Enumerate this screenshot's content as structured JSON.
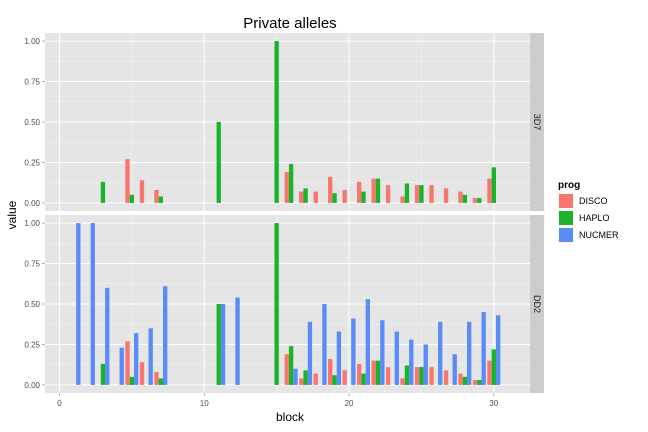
{
  "chart_data": {
    "type": "bar",
    "title": "Private alleles",
    "xlabel": "block",
    "ylabel": "value",
    "xlim": [
      -1,
      32.5
    ],
    "ylim": [
      -0.05,
      1.05
    ],
    "x_ticks": [
      0,
      10,
      20,
      30
    ],
    "y_ticks": [
      "0.00",
      "0.25",
      "0.50",
      "0.75",
      "1.00"
    ],
    "grid": true,
    "legend": {
      "title": "prog",
      "position": "right",
      "entries": [
        {
          "name": "DISCO",
          "color": "#F8766D"
        },
        {
          "name": "HAPLO",
          "color": "#1AB42B"
        },
        {
          "name": "NUCMER",
          "color": "#5A8CF8"
        }
      ]
    },
    "facets": [
      {
        "strip": "3D7",
        "series": [
          {
            "name": "DISCO",
            "x": [
              5,
              6,
              7,
              16,
              17,
              18,
              19,
              20,
              21,
              22,
              23,
              24,
              25,
              26,
              27,
              28,
              29,
              30
            ],
            "values": [
              0.27,
              0.14,
              0.08,
              0.19,
              0.07,
              0.07,
              0.16,
              0.08,
              0.13,
              0.15,
              0.11,
              0.04,
              0.11,
              0.11,
              0.09,
              0.07,
              0.03,
              0.15
            ]
          },
          {
            "name": "HAPLO",
            "x": [
              3,
              5,
              7,
              11,
              15,
              16,
              17,
              19,
              21,
              22,
              24,
              25,
              28,
              29,
              30
            ],
            "values": [
              0.13,
              0.05,
              0.04,
              0.5,
              1.0,
              0.24,
              0.09,
              0.06,
              0.07,
              0.15,
              0.12,
              0.11,
              0.05,
              0.03,
              0.22
            ]
          },
          {
            "name": "NUCMER",
            "x": [],
            "values": []
          }
        ]
      },
      {
        "strip": "DD2",
        "series": [
          {
            "name": "DISCO",
            "x": [
              5,
              6,
              7,
              16,
              17,
              18,
              19,
              20,
              21,
              22,
              23,
              24,
              25,
              26,
              27,
              28,
              29,
              30
            ],
            "values": [
              0.27,
              0.14,
              0.08,
              0.19,
              0.04,
              0.07,
              0.16,
              0.09,
              0.13,
              0.15,
              0.11,
              0.04,
              0.11,
              0.11,
              0.09,
              0.07,
              0.03,
              0.15
            ]
          },
          {
            "name": "HAPLO",
            "x": [
              3,
              5,
              7,
              11,
              15,
              16,
              17,
              19,
              21,
              22,
              24,
              25,
              28,
              29,
              30
            ],
            "values": [
              0.13,
              0.05,
              0.04,
              0.5,
              1.0,
              0.24,
              0.09,
              0.06,
              0.07,
              0.15,
              0.12,
              0.11,
              0.05,
              0.03,
              0.22
            ]
          },
          {
            "name": "NUCMER",
            "x": [
              1,
              2,
              3,
              4,
              5,
              6,
              7,
              11,
              12,
              16,
              17,
              18,
              19,
              20,
              21,
              22,
              23,
              24,
              25,
              26,
              27,
              28,
              29,
              30
            ],
            "values": [
              1.0,
              1.0,
              0.6,
              0.23,
              0.32,
              0.35,
              0.61,
              0.5,
              0.54,
              0.1,
              0.39,
              0.5,
              0.33,
              0.41,
              0.53,
              0.4,
              0.33,
              0.28,
              0.25,
              0.39,
              0.19,
              0.39,
              0.45,
              0.43
            ]
          }
        ]
      }
    ]
  }
}
